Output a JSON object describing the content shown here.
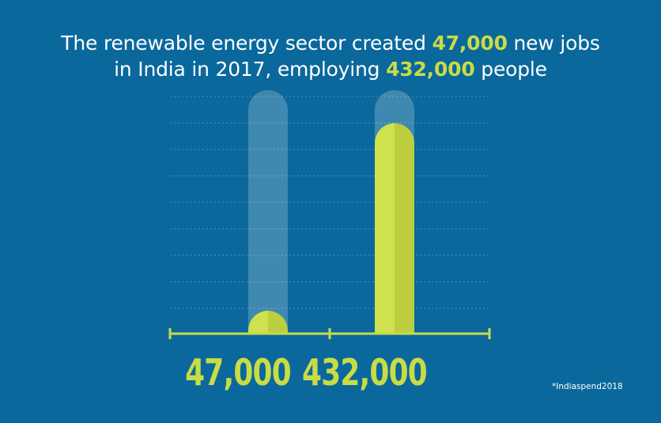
{
  "title": {
    "part1": "The renewable energy sector created ",
    "highlight1": "47,000",
    "part2": " new jobs",
    "part3": "in India in 2017, employing ",
    "highlight2": "432,000",
    "part4": " people"
  },
  "source": "*Indiaspend2018",
  "colors": {
    "background": "#0a689c",
    "accent": "#c8dc46",
    "bar_light": "#cfe14e",
    "bar_dark": "#bccd3f",
    "track": "rgba(255,255,255,0.22)",
    "grid": "rgba(255,255,255,0.28)"
  },
  "chart_data": {
    "type": "bar",
    "categories": [
      "47,000",
      "432,000"
    ],
    "values": [
      47000,
      432000
    ],
    "ylim": [
      0,
      500000
    ],
    "grid": true,
    "value_labels": [
      "47,000",
      "432,000"
    ]
  }
}
